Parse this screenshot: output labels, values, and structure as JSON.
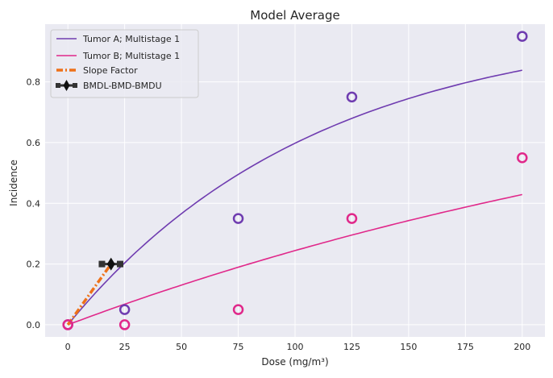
{
  "chart_data": {
    "type": "scatter",
    "title": "Model Average",
    "xlabel": "Dose (mg/m³)",
    "ylabel": "Incidence",
    "xlim": [
      -10,
      210
    ],
    "ylim": [
      -0.04,
      0.99
    ],
    "x_ticks": [
      0,
      25,
      50,
      75,
      100,
      125,
      150,
      175,
      200
    ],
    "x_tick_labels": [
      "0",
      "25",
      "50",
      "75",
      "100",
      "125",
      "150",
      "175",
      "200"
    ],
    "y_ticks": [
      0.0,
      0.2,
      0.4,
      0.6,
      0.8
    ],
    "y_tick_labels": [
      "0.0",
      "0.2",
      "0.4",
      "0.6",
      "0.8"
    ],
    "grid": true,
    "legend_position": "top-left",
    "series": [
      {
        "name": "Tumor A; Multistage 1",
        "color": "#6f3cb0",
        "observed": {
          "x": [
            0,
            25,
            75,
            125,
            200
          ],
          "y": [
            0.0,
            0.05,
            0.35,
            0.75,
            0.95
          ]
        },
        "fit": {
          "model": "1 - exp(-b*dose)",
          "b": 0.00911
        }
      },
      {
        "name": "Tumor B; Multistage 1",
        "color": "#e0288a",
        "observed": {
          "x": [
            0,
            25,
            75,
            125,
            200
          ],
          "y": [
            0.0,
            0.0,
            0.05,
            0.35,
            0.55
          ]
        },
        "fit": {
          "model": "1 - exp(-b*dose)",
          "b": 0.0028
        }
      }
    ],
    "slope_factor": {
      "name": "Slope Factor",
      "color": "#ee7119",
      "x": [
        0,
        19
      ],
      "y": [
        0.0,
        0.2
      ]
    },
    "bmd": {
      "name": "BMDL-BMD-BMDU",
      "bmdl": 15,
      "bmd": 19,
      "bmdu": 23,
      "y": 0.2,
      "color": "#333333"
    }
  }
}
